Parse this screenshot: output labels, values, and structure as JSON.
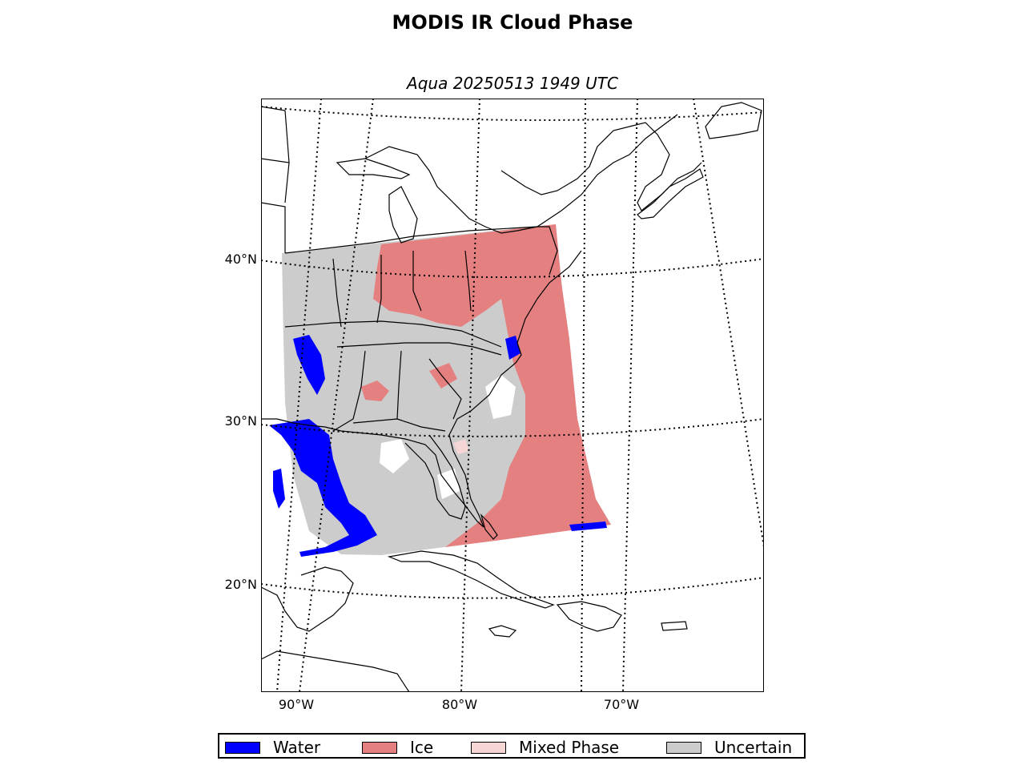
{
  "title": "MODIS IR Cloud Phase",
  "subtitle": "Aqua 20250513 1949 UTC",
  "lat_labels": [
    "40°N",
    "30°N",
    "20°N"
  ],
  "lon_labels": [
    "90°W",
    "80°W",
    "70°W"
  ],
  "legend": [
    {
      "label": "Water",
      "color": "#0000ff"
    },
    {
      "label": "Ice",
      "color": "#e58080"
    },
    {
      "label": "Mixed Phase",
      "color": "#f6d5d5"
    },
    {
      "label": "Uncertain",
      "color": "#cccccc"
    }
  ],
  "colors": {
    "land_outline": "#000000",
    "background": "#ffffff"
  }
}
